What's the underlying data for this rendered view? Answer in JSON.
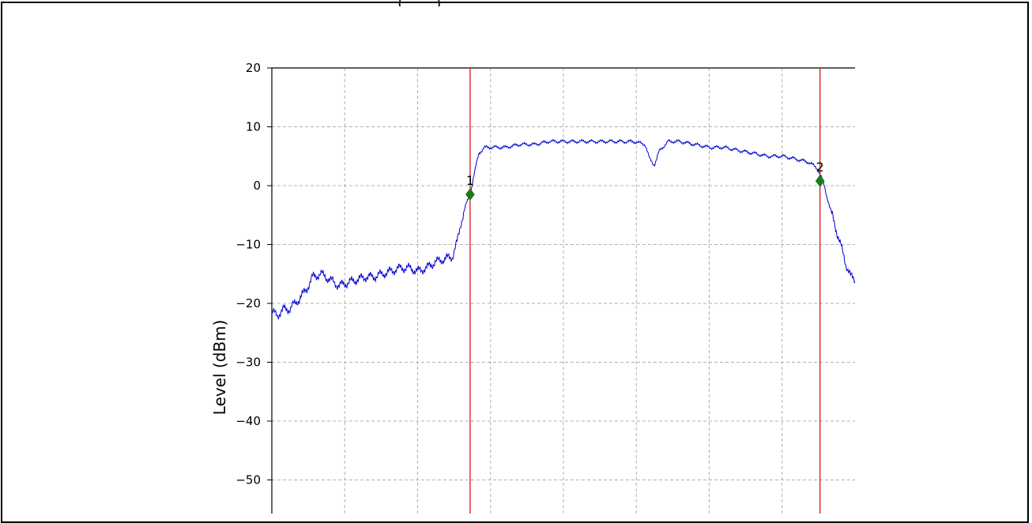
{
  "header": {
    "title_fragment": "(____)____________________"
  },
  "chart_data": {
    "type": "line",
    "title": "",
    "xlabel": "",
    "ylabel": "Level (dBm)",
    "ylim": [
      -58,
      20
    ],
    "xlim": [
      0,
      1
    ],
    "yticks": [
      20,
      10,
      0,
      -10,
      -20,
      -30,
      -40,
      -50
    ],
    "ytick_labels": [
      "20",
      "10",
      "0",
      "−10",
      "−20",
      "−30",
      "−40",
      "−50"
    ],
    "grid": true,
    "colors": {
      "trace": "#0000cc",
      "markers": "#1a7a1a",
      "marker_lines": "#e00000",
      "grid": "#b0b0b0"
    },
    "series": [
      {
        "x": [
          0.0,
          0.01,
          0.02,
          0.03,
          0.045,
          0.06,
          0.07,
          0.085,
          0.1,
          0.115,
          0.13,
          0.145,
          0.16,
          0.175,
          0.19,
          0.205,
          0.22,
          0.235,
          0.25,
          0.265,
          0.28,
          0.295,
          0.31,
          0.318,
          0.325,
          0.332,
          0.34,
          0.347,
          0.355,
          0.365,
          0.38,
          0.4,
          0.425,
          0.45,
          0.475,
          0.5,
          0.525,
          0.55,
          0.575,
          0.6,
          0.62,
          0.64,
          0.648,
          0.656,
          0.665,
          0.68,
          0.7,
          0.725,
          0.75,
          0.775,
          0.8,
          0.825,
          0.85,
          0.875,
          0.9,
          0.92,
          0.935,
          0.945,
          0.955,
          0.965,
          0.975,
          0.985,
          0.993,
          1.0
        ],
        "y": [
          -21.5,
          -22.0,
          -21.0,
          -21.0,
          -19.5,
          -17.5,
          -15.5,
          -15.0,
          -16.0,
          -17.0,
          -16.5,
          -16.0,
          -15.5,
          -15.5,
          -15.0,
          -14.5,
          -14.0,
          -14.0,
          -14.5,
          -14.0,
          -13.0,
          -12.5,
          -12.0,
          -9.5,
          -6.0,
          -3.5,
          -1.5,
          2.0,
          5.5,
          6.5,
          6.5,
          6.5,
          7.0,
          7.0,
          7.5,
          7.5,
          7.5,
          7.5,
          7.5,
          7.5,
          7.5,
          7.0,
          4.5,
          3.5,
          6.0,
          7.5,
          7.5,
          7.0,
          6.5,
          6.5,
          6.0,
          5.5,
          5.0,
          5.0,
          4.5,
          4.0,
          3.0,
          0.8,
          -3.0,
          -6.5,
          -10.0,
          -13.5,
          -15.5,
          -16.0
        ]
      }
    ],
    "markers": [
      {
        "label": "1",
        "x": 0.34,
        "y": -1.5
      },
      {
        "label": "2",
        "x": 0.94,
        "y": 0.8
      }
    ]
  }
}
